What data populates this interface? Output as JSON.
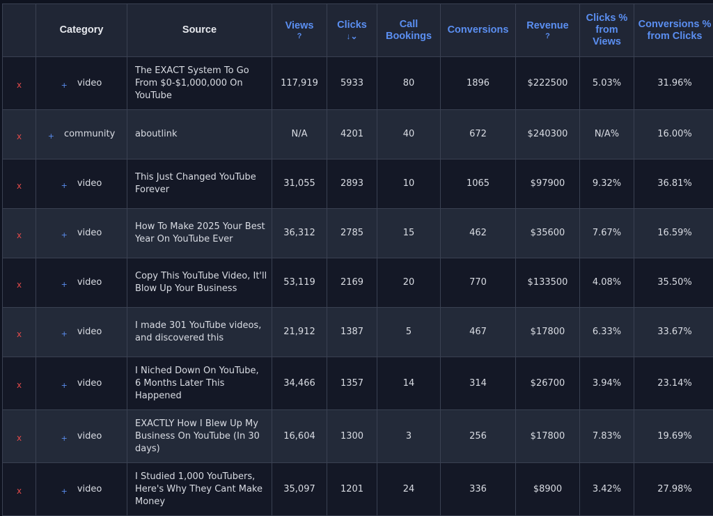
{
  "table": {
    "headers": {
      "delete": "",
      "category": "Category",
      "source": "Source",
      "views": "Views",
      "views_help": "?",
      "clicks": "Clicks",
      "clicks_sort": "↓⌄",
      "call_bookings": "Call Bookings",
      "conversions": "Conversions",
      "revenue": "Revenue",
      "revenue_help": "?",
      "clicks_pct": "Clicks % from Views",
      "conv_pct": "Conversions % from Clicks"
    },
    "delete_symbol": "x",
    "expand_symbol": "+",
    "rows": [
      {
        "category": "video",
        "source": "The EXACT System To Go From $0-$1,000,000 On YouTube",
        "views": "117,919",
        "clicks": "5933",
        "call_bookings": "80",
        "conversions": "1896",
        "revenue": "$222500",
        "clicks_pct": "5.03%",
        "conv_pct": "31.96%"
      },
      {
        "category": "community",
        "source": "aboutlink",
        "views": "N/A",
        "clicks": "4201",
        "call_bookings": "40",
        "conversions": "672",
        "revenue": "$240300",
        "clicks_pct": "N/A%",
        "conv_pct": "16.00%"
      },
      {
        "category": "video",
        "source": "This Just Changed YouTube Forever",
        "views": "31,055",
        "clicks": "2893",
        "call_bookings": "10",
        "conversions": "1065",
        "revenue": "$97900",
        "clicks_pct": "9.32%",
        "conv_pct": "36.81%"
      },
      {
        "category": "video",
        "source": "How To Make 2025 Your Best Year On YouTube Ever",
        "views": "36,312",
        "clicks": "2785",
        "call_bookings": "15",
        "conversions": "462",
        "revenue": "$35600",
        "clicks_pct": "7.67%",
        "conv_pct": "16.59%"
      },
      {
        "category": "video",
        "source": "Copy This YouTube Video, It'll Blow Up Your Business",
        "views": "53,119",
        "clicks": "2169",
        "call_bookings": "20",
        "conversions": "770",
        "revenue": "$133500",
        "clicks_pct": "4.08%",
        "conv_pct": "35.50%"
      },
      {
        "category": "video",
        "source": "I made 301 YouTube videos, and discovered this",
        "views": "21,912",
        "clicks": "1387",
        "call_bookings": "5",
        "conversions": "467",
        "revenue": "$17800",
        "clicks_pct": "6.33%",
        "conv_pct": "33.67%"
      },
      {
        "category": "video",
        "source": "I Niched Down On YouTube, 6 Months Later This Happened",
        "views": "34,466",
        "clicks": "1357",
        "call_bookings": "14",
        "conversions": "314",
        "revenue": "$26700",
        "clicks_pct": "3.94%",
        "conv_pct": "23.14%"
      },
      {
        "category": "video",
        "source": "EXACTLY How I Blew Up My Business On YouTube (In 30 days)",
        "views": "16,604",
        "clicks": "1300",
        "call_bookings": "3",
        "conversions": "256",
        "revenue": "$17800",
        "clicks_pct": "7.83%",
        "conv_pct": "19.69%"
      },
      {
        "category": "video",
        "source": "I Studied 1,000 YouTubers, Here's Why They Cant Make Money",
        "views": "35,097",
        "clicks": "1201",
        "call_bookings": "24",
        "conversions": "336",
        "revenue": "$8900",
        "clicks_pct": "3.42%",
        "conv_pct": "27.98%"
      }
    ]
  },
  "colors": {
    "background": "#0f1320",
    "header_bg": "#202635",
    "row_odd": "#141826",
    "row_even": "#232a39",
    "header_accent": "#5b8ff2",
    "delete_red": "#e24a4a",
    "border": "#3a4152"
  },
  "icons": {
    "delete": "close-icon",
    "expand": "plus-icon",
    "sort": "sort-down-icon",
    "help": "help-icon"
  }
}
